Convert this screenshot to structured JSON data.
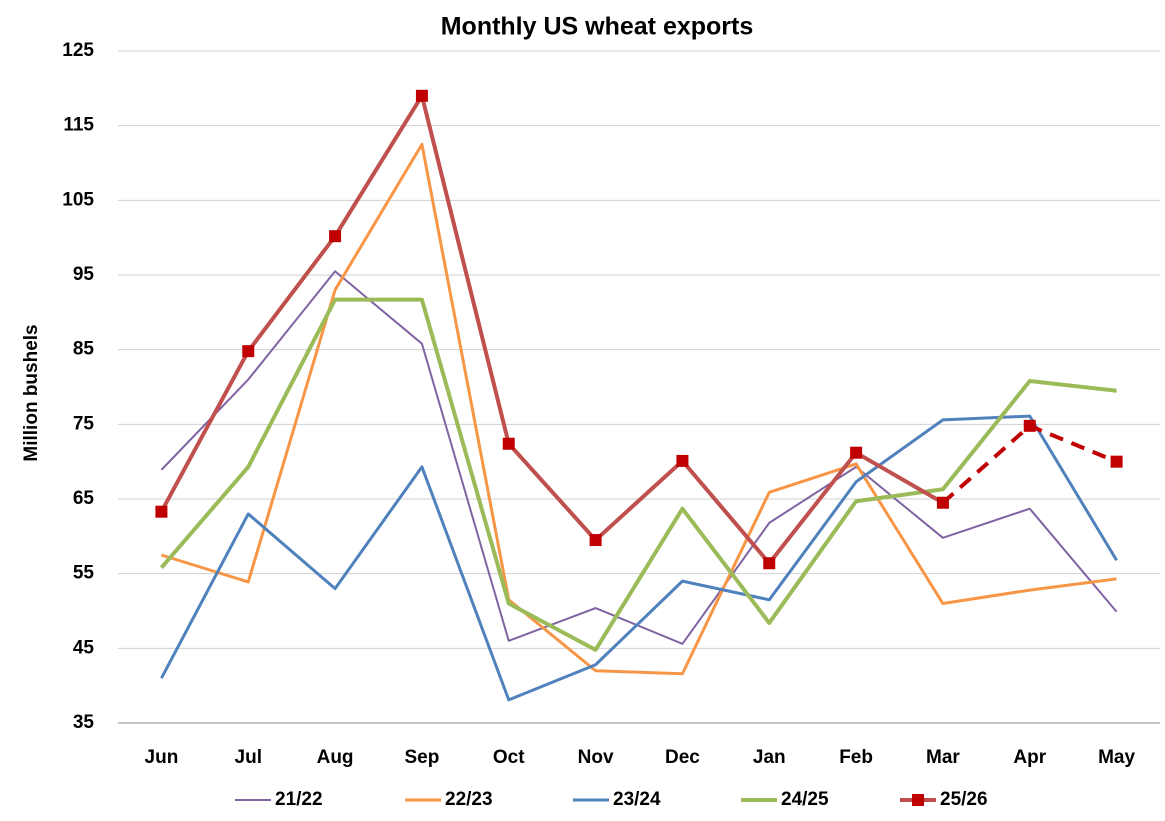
{
  "chart_data": {
    "type": "line",
    "title": "Monthly US wheat exports",
    "y_label": "Million bushels",
    "categories": [
      "Jun",
      "Jul",
      "Aug",
      "Sep",
      "Oct",
      "Nov",
      "Dec",
      "Jan",
      "Feb",
      "Mar",
      "Apr",
      "May"
    ],
    "ylim": [
      35,
      125
    ],
    "yticks": [
      35,
      45,
      55,
      65,
      75,
      85,
      95,
      105,
      115,
      125
    ],
    "grid": true,
    "legend": "bottom",
    "series": [
      {
        "name": "21/22",
        "color": "#8064a2",
        "width": 2,
        "values": [
          68.9,
          81,
          95.5,
          85.8,
          46,
          50.4,
          45.6,
          61.8,
          69.3,
          59.8,
          63.7,
          49.9
        ]
      },
      {
        "name": "22/23",
        "color": "#f79646",
        "width": 3,
        "values": [
          57.5,
          53.9,
          93,
          112.5,
          51.5,
          42,
          41.6,
          65.9,
          69.7,
          51,
          52.8,
          54.3
        ]
      },
      {
        "name": "23/24",
        "color": "#4f81bd",
        "width": 3,
        "values": [
          41,
          63,
          53,
          69.3,
          38.1,
          42.8,
          54,
          51.5,
          67.3,
          75.6,
          76.1,
          56.8
        ]
      },
      {
        "name": "24/25",
        "color": "#9bbb59",
        "width": 4,
        "values": [
          55.8,
          69.3,
          91.7,
          91.7,
          51,
          44.8,
          63.7,
          48.4,
          64.7,
          66.3,
          80.8,
          79.5
        ]
      },
      {
        "name": "25/26",
        "color": "#c0504d",
        "marker_color": "#c00000",
        "marker": "square",
        "width": 4,
        "dashed_from": "Mar",
        "values": [
          63.3,
          84.8,
          100.2,
          119,
          72.4,
          59.5,
          70.1,
          56.4,
          71.2,
          64.5,
          74.8,
          70
        ]
      }
    ]
  }
}
